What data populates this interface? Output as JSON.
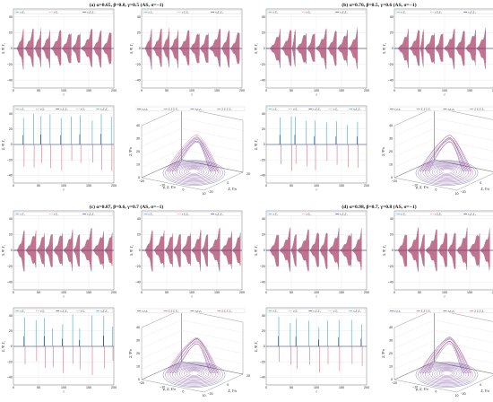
{
  "chart_data": [
    {
      "type": "line",
      "panel": "(a) α=0.65, β=0.8, γ=0.5 (AS, σ=−1)",
      "title": "(a) α=0.65, β=0.8, γ=0.5 (AS, σ=−1)",
      "xlim": [
        0,
        200
      ],
      "xticks": [
        "0",
        "50",
        "100",
        "150",
        "200"
      ],
      "spike_times": [
        20,
        40,
        55,
        73,
        95,
        115,
        133,
        157,
        175,
        195
      ],
      "subplots": [
        {
          "id": "psi1",
          "ylabel": "S, Ψ, Υ₁",
          "xlabel": "t",
          "yticks": [
            "40",
            "20",
            "0",
            "−20",
            "−40"
          ],
          "ylim": [
            -50,
            50
          ],
          "legend": [
            "x Σ₁",
            "y Σ₁",
            "x₁Σ₁Σ₁"
          ],
          "amplitude": 28
        },
        {
          "id": "psi2",
          "ylabel": "S, Ψ, Υ₂",
          "xlabel": "t",
          "yticks": [
            "40",
            "20",
            "0",
            "−20",
            "−40"
          ],
          "ylim": [
            -50,
            50
          ],
          "legend": [
            "y Σ₁",
            "x Σ₁Σ₁",
            "x₂Σ₁Σ₂"
          ],
          "amplitude": 28
        },
        {
          "id": "sync",
          "ylabel": "Σ, Ψ, Υ₃",
          "xlabel": "t",
          "yticks": [
            "40",
            "20",
            "0",
            "−20",
            "−40"
          ],
          "ylim": [
            -50,
            50
          ],
          "legend": [
            "z Σ₁",
            "u Σ₁",
            "x₁Σ₁Σ₁",
            "u Σ₁",
            "x₃Σ₁Σ₁"
          ],
          "amplitude": 40
        }
      ],
      "phase3d": {
        "legend": [
          "x₁y₁z₁",
          "Σ Σ Σ Σ₁",
          "x₂y₂z₂",
          "Σ Σ Σ Σ₂"
        ],
        "zticks": [
          "40",
          "30",
          "20",
          "10",
          "0"
        ],
        "xticks": [
          "−20",
          "−10",
          "0",
          "10"
        ],
        "yticks": [
          "−20",
          "0",
          "20"
        ],
        "xlabel": "φ, Σ, Υ/σ",
        "ylabel": "Σ, Υ/σ",
        "zlabel": "Σ, Ψ/σ"
      }
    },
    {
      "type": "line",
      "panel": "(b) α=0.76, β=0.5, γ=0.6 (AS, σ=−1)",
      "title": "(b) α=0.76, β=0.5, γ=0.6 (AS, σ=−1)",
      "xlim": [
        0,
        200
      ],
      "xticks": [
        "0",
        "50",
        "100",
        "150",
        "200"
      ],
      "spike_times": [
        28,
        50,
        58,
        80,
        97,
        120,
        140,
        162,
        182
      ],
      "subplots": [
        {
          "id": "psi1",
          "ylabel": "S, Ψ, Υ₁",
          "xlabel": "t",
          "yticks": [
            "40",
            "20",
            "0",
            "−20",
            "−40"
          ],
          "ylim": [
            -50,
            50
          ],
          "legend": [
            "x Σ₁",
            "y Σ₁",
            "x₁Σ₁Σ₁"
          ],
          "amplitude": 28
        },
        {
          "id": "psi2",
          "ylabel": "S, Ψ, Υ₂",
          "xlabel": "t",
          "yticks": [
            "40",
            "20",
            "0",
            "−20",
            "−40"
          ],
          "ylim": [
            -50,
            50
          ],
          "legend": [
            "y Σ₁",
            "x Σ₁Σ₁",
            "x₂Σ₁Σ₂"
          ],
          "amplitude": 28
        },
        {
          "id": "sync",
          "ylabel": "Σ, Ψ, Υ₃",
          "xlabel": "t",
          "yticks": [
            "40",
            "20",
            "0",
            "−20",
            "−40"
          ],
          "ylim": [
            -50,
            50
          ],
          "legend": [
            "z Σ₁",
            "u Σ₁",
            "x₁Σ₁Σ₁",
            "u Σ₁",
            "x₃Σ₁Σ₁"
          ],
          "amplitude": 40
        }
      ],
      "phase3d": {
        "legend": [
          "x₁y₁z₁",
          "Σ Σ Σ Σ₁",
          "x₂y₂z₂",
          "Σ Σ Σ Σ₂"
        ],
        "zticks": [
          "40",
          "30",
          "20",
          "10",
          "0"
        ],
        "xticks": [
          "−20",
          "−10",
          "0",
          "10"
        ],
        "yticks": [
          "−20",
          "0",
          "20"
        ],
        "xlabel": "φ, Σ, Υ/σ",
        "ylabel": "Σ, Υ/σ",
        "zlabel": "Σ, Ψ/σ"
      }
    },
    {
      "type": "line",
      "panel": "(c) α=0.87, β=0.6, γ=0.7 (AS, σ=−1)",
      "title": "(c) α=0.87, β=0.6, γ=0.7 (AS, σ=−1)",
      "xlim": [
        0,
        200
      ],
      "xticks": [
        "0",
        "50",
        "100",
        "150",
        "200"
      ],
      "spike_times": [
        22,
        45,
        62,
        78,
        98,
        118,
        132,
        156,
        180,
        197
      ],
      "subplots": [
        {
          "id": "psi1",
          "ylabel": "S, Ψ, Υ₁",
          "xlabel": "t",
          "yticks": [
            "40",
            "20",
            "0",
            "−20",
            "−40"
          ],
          "ylim": [
            -50,
            50
          ],
          "legend": [
            "x Σ₁",
            "y Σ₁",
            "x₁Σ₁Σ₁"
          ],
          "amplitude": 30
        },
        {
          "id": "psi2",
          "ylabel": "S, Ψ, Υ₂",
          "xlabel": "t",
          "yticks": [
            "40",
            "20",
            "0",
            "−20",
            "−40"
          ],
          "ylim": [
            -50,
            50
          ],
          "legend": [
            "y Σ₁",
            "x Σ₁Σ₁",
            "x₂Σ₁Σ₂"
          ],
          "amplitude": 30
        },
        {
          "id": "sync",
          "ylabel": "Σ, Ψ, Υ₃",
          "xlabel": "t",
          "yticks": [
            "40",
            "20",
            "0",
            "−20",
            "−40"
          ],
          "ylim": [
            -50,
            50
          ],
          "legend": [
            "z Σ₁",
            "u Σ₁",
            "x₁Σ₁Σ₁",
            "u Σ₁",
            "x₃Σ₁Σ₁"
          ],
          "amplitude": 42
        }
      ],
      "phase3d": {
        "legend": [
          "x₁y₁z₁",
          "Σ Σ Σ Σ₁",
          "x₂y₂z₂",
          "Σ Σ Σ Σ₂"
        ],
        "zticks": [
          "40",
          "30",
          "20",
          "10",
          "0"
        ],
        "xticks": [
          "−20",
          "−10",
          "0",
          "10"
        ],
        "yticks": [
          "−20",
          "0",
          "20"
        ],
        "xlabel": "φ, Σ, Υ/σ",
        "ylabel": "Σ, Υ/σ",
        "zlabel": "Σ, Ψ/σ"
      }
    },
    {
      "type": "line",
      "panel": "(d) α=0.98, β=0.7, γ=0.8 (AS, σ=−1)",
      "title": "(d) α=0.98, β=0.7, γ=0.8 (AS, σ=−1)",
      "xlim": [
        0,
        200
      ],
      "xticks": [
        "0",
        "50",
        "100",
        "150",
        "200"
      ],
      "spike_times": [
        25,
        48,
        60,
        85,
        105,
        122,
        145,
        170,
        190
      ],
      "subplots": [
        {
          "id": "psi1",
          "ylabel": "S, Ψ, Υ₁",
          "xlabel": "t",
          "yticks": [
            "40",
            "20",
            "0",
            "−20",
            "−40"
          ],
          "ylim": [
            -50,
            50
          ],
          "legend": [
            "x Σ₁",
            "y Σ₁",
            "x₁Σ₁Σ₁"
          ],
          "amplitude": 30
        },
        {
          "id": "psi2",
          "ylabel": "S, Ψ, Υ₂",
          "xlabel": "t",
          "yticks": [
            "40",
            "20",
            "0",
            "−20",
            "−40"
          ],
          "ylim": [
            -50,
            50
          ],
          "legend": [
            "y Σ₁",
            "x Σ₁Σ₁",
            "x₂Σ₁Σ₂"
          ],
          "amplitude": 30
        },
        {
          "id": "sync",
          "ylabel": "Σ, Ψ, Υ₃",
          "xlabel": "t",
          "yticks": [
            "40",
            "20",
            "0",
            "−20",
            "−40"
          ],
          "ylim": [
            -50,
            50
          ],
          "legend": [
            "z Σ₁",
            "u Σ₁",
            "x₁Σ₁Σ₁",
            "u Σ₁",
            "x₃Σ₁Σ₁"
          ],
          "amplitude": 42
        }
      ],
      "phase3d": {
        "legend": [
          "x₁y₁z₁",
          "Σ Σ Σ Σ₁",
          "x₂y₂z₂",
          "Σ Σ Σ Σ₂"
        ],
        "zticks": [
          "40",
          "30",
          "20",
          "10",
          "0"
        ],
        "xticks": [
          "−20",
          "−10",
          "0",
          "10"
        ],
        "yticks": [
          "−20",
          "0",
          "20"
        ],
        "xlabel": "φ, Σ, Υ/σ",
        "ylabel": "Σ, Υ/σ",
        "zlabel": "Σ, Ψ/σ"
      }
    }
  ],
  "colors": {
    "series_a": "#2e9fc4",
    "series_b": "#e0607a",
    "series_c": "#1f2f7a",
    "series_d": "#8a8a8a",
    "phase_outer": "#3a3f9a",
    "phase_inner": "#d0407a"
  }
}
